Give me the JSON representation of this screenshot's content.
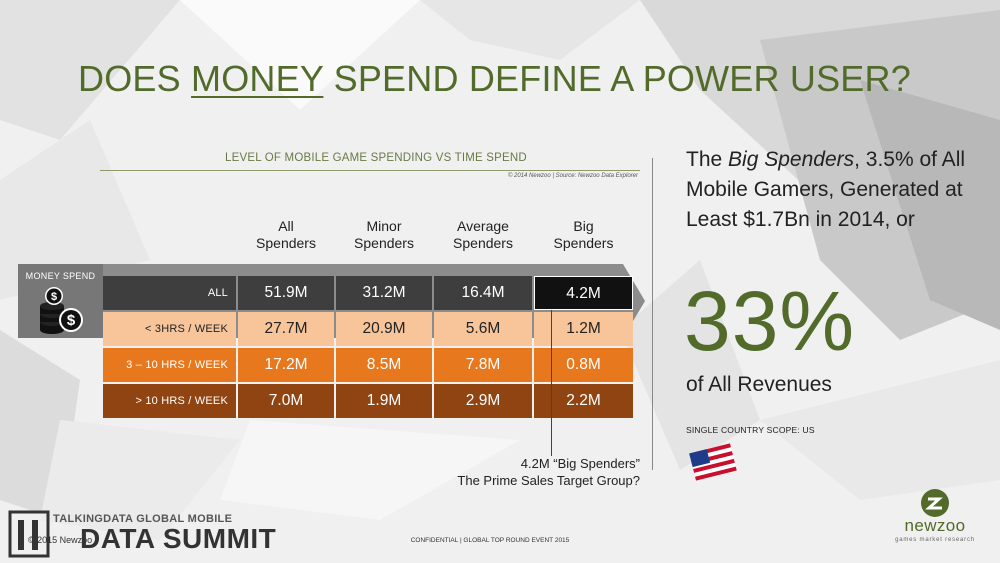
{
  "title": {
    "before": "DOES ",
    "emph": "MONEY",
    "after": " SPEND DEFINE A POWER USER?"
  },
  "chart_title": "LEVEL OF MOBILE GAME SPENDING VS TIME SPEND",
  "source_note": "© 2014 Newzoo | Source: Newzoo Data Explorer",
  "money_spend_label": "MONEY SPEND",
  "colors": {
    "title_green": "#526b2a",
    "row_all": "#3e3e3e",
    "row_all_big": "#111111",
    "row_lt3": "#f8c59b",
    "row_3to10": "#e8781e",
    "row_gt10": "#8f4412",
    "band": "#8c8c8c"
  },
  "chart_data": {
    "type": "table",
    "columns": [
      {
        "line1": "All",
        "line2": "Spenders"
      },
      {
        "line1": "Minor",
        "line2": "Spenders"
      },
      {
        "line1": "Average",
        "line2": "Spenders"
      },
      {
        "line1": "Big",
        "line2": "Spenders"
      }
    ],
    "rows": [
      {
        "label": "ALL",
        "values": [
          "51.9M",
          "31.2M",
          "16.4M",
          "4.2M"
        ]
      },
      {
        "label": "< 3HRS / WEEK",
        "values": [
          "27.7M",
          "20.9M",
          "5.6M",
          "1.2M"
        ]
      },
      {
        "label": "3 – 10 HRS / WEEK",
        "values": [
          "17.2M",
          "8.5M",
          "7.8M",
          "0.8M"
        ]
      },
      {
        "label": "> 10 HRS / WEEK",
        "values": [
          "7.0M",
          "1.9M",
          "2.9M",
          "2.2M"
        ]
      }
    ]
  },
  "annotation": {
    "line1": "4.2M “Big Spenders”",
    "line2": "The Prime Sales Target Group?"
  },
  "statement": {
    "pre": "The ",
    "italic": "Big Spenders",
    "post": ", 3.5% of All Mobile Gamers, Generated at Least $1.7Bn in 2014, or"
  },
  "big_number": "33%",
  "revenues_text": "of All Revenues",
  "scope": "SINGLE COUNTRY SCOPE: US",
  "flag_icon": "us-flag-icon",
  "footer_confidential": "CONFIDENTIAL | GLOBAL TOP ROUND EVENT 2015",
  "copyright": "© 2015 Newzoo",
  "summit": {
    "top": "TALKINGDATA GLOBAL MOBILE",
    "big": "DATA SUMMIT"
  },
  "logo": {
    "name": "newzoo",
    "tagline": "games market research"
  }
}
